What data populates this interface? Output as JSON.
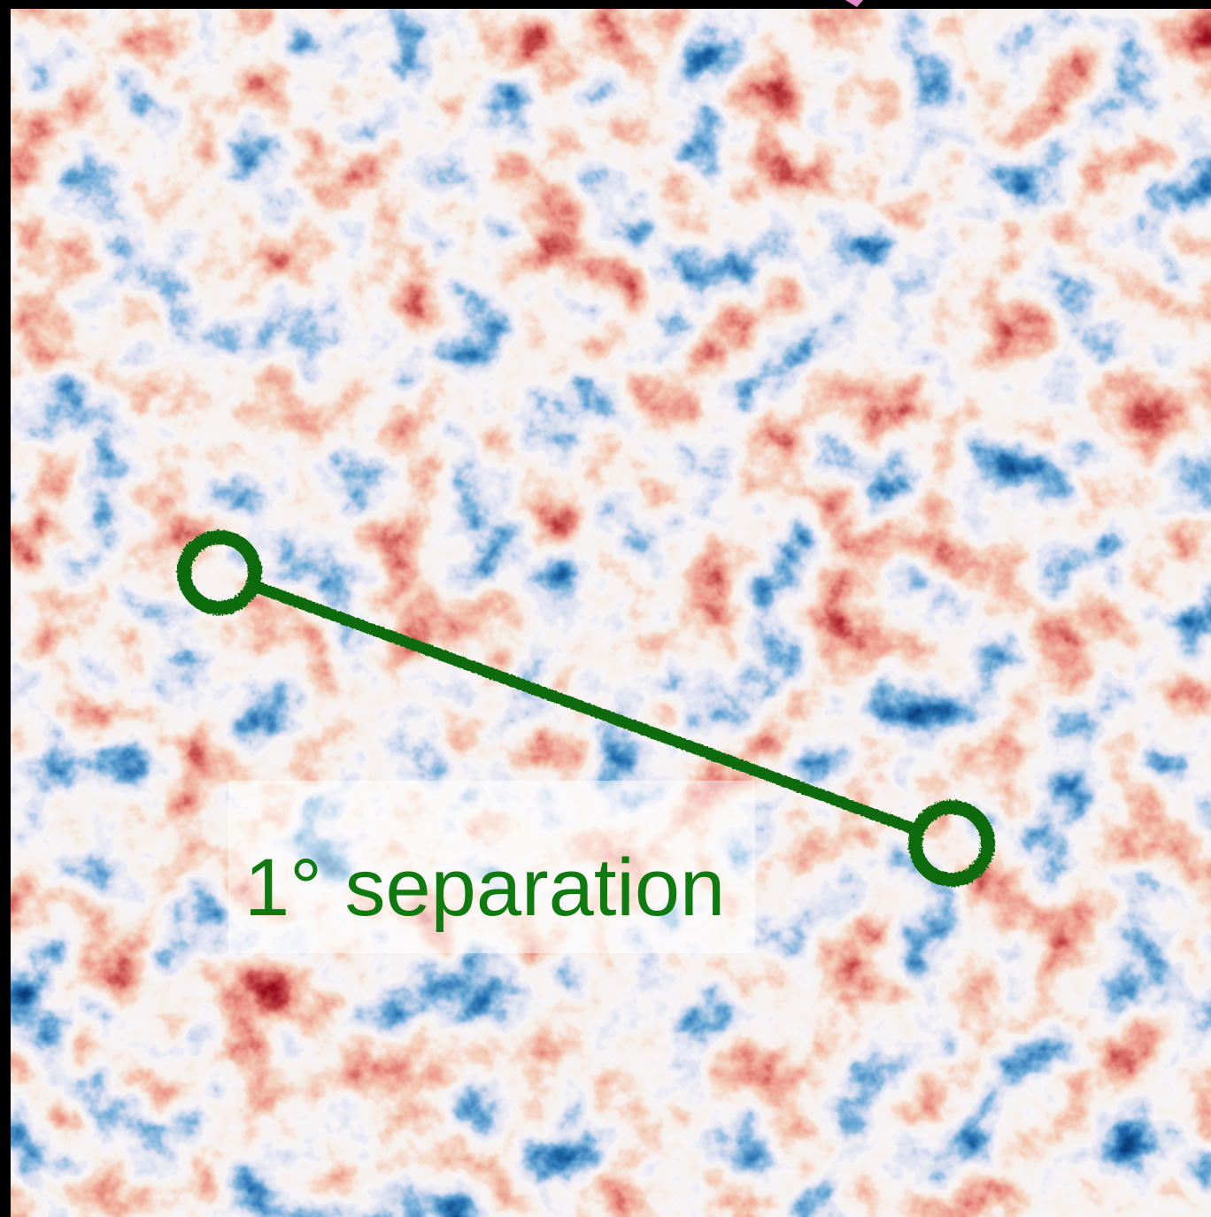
{
  "annotation": {
    "label": "1° separation"
  }
}
